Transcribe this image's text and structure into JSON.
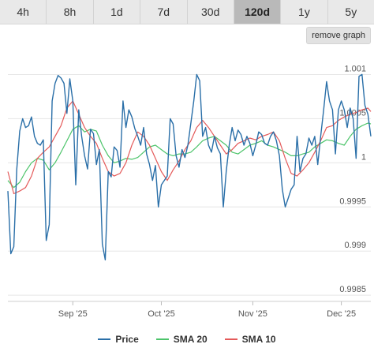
{
  "tabs": [
    {
      "label": "4h",
      "active": false
    },
    {
      "label": "8h",
      "active": false
    },
    {
      "label": "1d",
      "active": false
    },
    {
      "label": "7d",
      "active": false
    },
    {
      "label": "30d",
      "active": false
    },
    {
      "label": "120d",
      "active": true
    },
    {
      "label": "1y",
      "active": false
    },
    {
      "label": "5y",
      "active": false
    }
  ],
  "remove_graph_label": "remove graph",
  "colors": {
    "price": "#2a6fa8",
    "sma20": "#4cc46a",
    "sma10": "#e45a5a",
    "grid": "#e6e6e6"
  },
  "chart_data": {
    "type": "line",
    "title": "",
    "xlabel": "",
    "ylabel": "",
    "ylim": [
      0.99843,
      1.00129
    ],
    "x_range": [
      "2025-08-10",
      "2025-12-11"
    ],
    "x_ticks": [
      {
        "date": "2025-09-01",
        "label": "Sep '25"
      },
      {
        "date": "2025-10-01",
        "label": "Oct '25"
      },
      {
        "date": "2025-11-01",
        "label": "Nov '25"
      },
      {
        "date": "2025-12-01",
        "label": "Dec '25"
      }
    ],
    "y_ticks": [
      {
        "value": 0.9985,
        "label": "0.9985"
      },
      {
        "value": 0.999,
        "label": "0.999"
      },
      {
        "value": 0.9995,
        "label": "0.9995"
      },
      {
        "value": 1.0,
        "label": "1"
      },
      {
        "value": 1.0005,
        "label": "1.0005"
      },
      {
        "value": 1.001,
        "label": "1.001"
      }
    ],
    "grid": true,
    "legend_position": "bottom",
    "series": [
      {
        "name": "Price",
        "points": [
          [
            "2025-08-10",
            0.99968
          ],
          [
            "2025-08-11",
            0.99897
          ],
          [
            "2025-08-12",
            0.99905
          ],
          [
            "2025-08-13",
            0.99992
          ],
          [
            "2025-08-14",
            1.00036
          ],
          [
            "2025-08-15",
            1.0005
          ],
          [
            "2025-08-16",
            1.0004
          ],
          [
            "2025-08-17",
            1.00042
          ],
          [
            "2025-08-18",
            1.00052
          ],
          [
            "2025-08-19",
            1.0003
          ],
          [
            "2025-08-20",
            1.00022
          ],
          [
            "2025-08-21",
            1.0002
          ],
          [
            "2025-08-22",
            1.00026
          ],
          [
            "2025-08-23",
            0.99912
          ],
          [
            "2025-08-24",
            0.9993
          ],
          [
            "2025-08-25",
            1.0007
          ],
          [
            "2025-08-26",
            1.0009
          ],
          [
            "2025-08-27",
            1.00099
          ],
          [
            "2025-08-28",
            1.00096
          ],
          [
            "2025-08-29",
            1.0009
          ],
          [
            "2025-08-30",
            1.00056
          ],
          [
            "2025-08-31",
            1.00095
          ],
          [
            "2025-09-01",
            1.0007
          ],
          [
            "2025-09-02",
            0.99975
          ],
          [
            "2025-09-03",
            1.0006
          ],
          [
            "2025-09-04",
            1.0003
          ],
          [
            "2025-09-05",
            1.00008
          ],
          [
            "2025-09-06",
            0.99993
          ],
          [
            "2025-09-07",
            1.00038
          ],
          [
            "2025-09-08",
            1.00033
          ],
          [
            "2025-09-09",
            0.99998
          ],
          [
            "2025-09-10",
            1.00015
          ],
          [
            "2025-09-11",
            0.99908
          ],
          [
            "2025-09-12",
            0.9989
          ],
          [
            "2025-09-13",
            0.9999
          ],
          [
            "2025-09-14",
            0.99984
          ],
          [
            "2025-09-15",
            1.00018
          ],
          [
            "2025-09-16",
            1.00014
          ],
          [
            "2025-09-17",
            0.99995
          ],
          [
            "2025-09-18",
            1.0007
          ],
          [
            "2025-09-19",
            1.0004
          ],
          [
            "2025-09-20",
            1.0006
          ],
          [
            "2025-09-21",
            1.00052
          ],
          [
            "2025-09-22",
            1.00039
          ],
          [
            "2025-09-23",
            1.0003
          ],
          [
            "2025-09-24",
            1.0002
          ],
          [
            "2025-09-25",
            1.0004
          ],
          [
            "2025-09-26",
            1.0001
          ],
          [
            "2025-09-27",
            0.99998
          ],
          [
            "2025-09-28",
            0.9998
          ],
          [
            "2025-09-29",
            0.99997
          ],
          [
            "2025-09-30",
            0.9995
          ],
          [
            "2025-10-01",
            0.99975
          ],
          [
            "2025-10-02",
            0.9998
          ],
          [
            "2025-10-03",
            0.99985
          ],
          [
            "2025-10-04",
            1.0005
          ],
          [
            "2025-10-05",
            1.00044
          ],
          [
            "2025-10-06",
            1.00008
          ],
          [
            "2025-10-07",
            0.99995
          ],
          [
            "2025-10-08",
            1.00015
          ],
          [
            "2025-10-09",
            1.00006
          ],
          [
            "2025-10-10",
            1.0002
          ],
          [
            "2025-10-11",
            1.00045
          ],
          [
            "2025-10-12",
            1.0007
          ],
          [
            "2025-10-13",
            1.001
          ],
          [
            "2025-10-14",
            1.00093
          ],
          [
            "2025-10-15",
            1.0003
          ],
          [
            "2025-10-16",
            1.0004
          ],
          [
            "2025-10-17",
            1.0002
          ],
          [
            "2025-10-18",
            1.00012
          ],
          [
            "2025-10-19",
            1.0003
          ],
          [
            "2025-10-20",
            1.00017
          ],
          [
            "2025-10-21",
            1.0001
          ],
          [
            "2025-10-22",
            0.9995
          ],
          [
            "2025-10-23",
            0.9999
          ],
          [
            "2025-10-24",
            1.0002
          ],
          [
            "2025-10-25",
            1.0004
          ],
          [
            "2025-10-26",
            1.00025
          ],
          [
            "2025-10-27",
            1.00037
          ],
          [
            "2025-10-28",
            1.00032
          ],
          [
            "2025-10-29",
            1.0002
          ],
          [
            "2025-10-30",
            1.0003
          ],
          [
            "2025-10-31",
            1.00022
          ],
          [
            "2025-11-01",
            1.00008
          ],
          [
            "2025-11-02",
            1.0002
          ],
          [
            "2025-11-03",
            1.00035
          ],
          [
            "2025-11-04",
            1.00032
          ],
          [
            "2025-11-05",
            1.00022
          ],
          [
            "2025-11-06",
            1.0002
          ],
          [
            "2025-11-07",
            1.0003
          ],
          [
            "2025-11-08",
            1.00035
          ],
          [
            "2025-11-09",
            1.00025
          ],
          [
            "2025-11-10",
            1.00008
          ],
          [
            "2025-11-11",
            0.9997
          ],
          [
            "2025-11-12",
            0.9995
          ],
          [
            "2025-11-13",
            0.9996
          ],
          [
            "2025-11-14",
            0.9997
          ],
          [
            "2025-11-15",
            0.99975
          ],
          [
            "2025-11-16",
            1.0003
          ],
          [
            "2025-11-17",
            0.9999
          ],
          [
            "2025-11-18",
            1.00005
          ],
          [
            "2025-11-19",
            1.0001
          ],
          [
            "2025-11-20",
            1.00028
          ],
          [
            "2025-11-21",
            1.0002
          ],
          [
            "2025-11-22",
            1.0003
          ],
          [
            "2025-11-23",
            0.99998
          ],
          [
            "2025-11-24",
            1.0003
          ],
          [
            "2025-11-25",
            1.0006
          ],
          [
            "2025-11-26",
            1.00092
          ],
          [
            "2025-11-27",
            1.0007
          ],
          [
            "2025-11-28",
            1.0006
          ],
          [
            "2025-11-29",
            1.0001
          ],
          [
            "2025-11-30",
            1.0006
          ],
          [
            "2025-12-01",
            1.0007
          ],
          [
            "2025-12-02",
            1.0006
          ],
          [
            "2025-12-03",
            1.0004
          ],
          [
            "2025-12-04",
            1.00062
          ],
          [
            "2025-12-05",
            1.0005
          ],
          [
            "2025-12-06",
            1.00005
          ],
          [
            "2025-12-07",
            1.00098
          ],
          [
            "2025-12-08",
            1.001
          ],
          [
            "2025-12-09",
            1.00065
          ],
          [
            "2025-12-10",
            1.00055
          ],
          [
            "2025-12-11",
            1.0003
          ]
        ]
      },
      {
        "name": "SMA 20",
        "points": [
          [
            "2025-08-10",
            0.9998
          ],
          [
            "2025-08-12",
            0.99972
          ],
          [
            "2025-08-14",
            0.99978
          ],
          [
            "2025-08-16",
            0.9999
          ],
          [
            "2025-08-18",
            1.0
          ],
          [
            "2025-08-20",
            1.00005
          ],
          [
            "2025-08-22",
            1.00003
          ],
          [
            "2025-08-24",
            0.99992
          ],
          [
            "2025-08-26",
            1.0
          ],
          [
            "2025-08-28",
            1.00012
          ],
          [
            "2025-08-30",
            1.00025
          ],
          [
            "2025-09-01",
            1.00038
          ],
          [
            "2025-09-03",
            1.00042
          ],
          [
            "2025-09-05",
            1.00035
          ],
          [
            "2025-09-07",
            1.00038
          ],
          [
            "2025-09-09",
            1.00036
          ],
          [
            "2025-09-11",
            1.0002
          ],
          [
            "2025-09-13",
            1.00008
          ],
          [
            "2025-09-15",
            1.0
          ],
          [
            "2025-09-17",
            1.00002
          ],
          [
            "2025-09-19",
            1.00005
          ],
          [
            "2025-09-21",
            1.00004
          ],
          [
            "2025-09-23",
            1.00006
          ],
          [
            "2025-09-25",
            1.00012
          ],
          [
            "2025-09-27",
            1.00018
          ],
          [
            "2025-09-29",
            1.0002
          ],
          [
            "2025-10-01",
            1.00015
          ],
          [
            "2025-10-03",
            1.0001
          ],
          [
            "2025-10-05",
            1.00008
          ],
          [
            "2025-10-07",
            1.0001
          ],
          [
            "2025-10-09",
            1.0001
          ],
          [
            "2025-10-11",
            1.00012
          ],
          [
            "2025-10-13",
            1.00018
          ],
          [
            "2025-10-15",
            1.00025
          ],
          [
            "2025-10-17",
            1.00028
          ],
          [
            "2025-10-19",
            1.0003
          ],
          [
            "2025-10-21",
            1.00025
          ],
          [
            "2025-10-23",
            1.0002
          ],
          [
            "2025-10-25",
            1.00012
          ],
          [
            "2025-10-27",
            1.0001
          ],
          [
            "2025-10-29",
            1.00015
          ],
          [
            "2025-10-31",
            1.0002
          ],
          [
            "2025-11-02",
            1.00022
          ],
          [
            "2025-11-04",
            1.00025
          ],
          [
            "2025-11-06",
            1.0002
          ],
          [
            "2025-11-08",
            1.00018
          ],
          [
            "2025-11-10",
            1.00015
          ],
          [
            "2025-11-12",
            1.00012
          ],
          [
            "2025-11-14",
            1.00008
          ],
          [
            "2025-11-16",
            1.00008
          ],
          [
            "2025-11-18",
            1.0001
          ],
          [
            "2025-11-20",
            1.00012
          ],
          [
            "2025-11-22",
            1.00018
          ],
          [
            "2025-11-24",
            1.00022
          ],
          [
            "2025-11-26",
            1.00026
          ],
          [
            "2025-11-28",
            1.00025
          ],
          [
            "2025-11-30",
            1.00022
          ],
          [
            "2025-12-02",
            1.0002
          ],
          [
            "2025-12-04",
            1.0003
          ],
          [
            "2025-12-06",
            1.00038
          ],
          [
            "2025-12-08",
            1.00042
          ],
          [
            "2025-12-10",
            1.00045
          ],
          [
            "2025-12-11",
            1.00044
          ]
        ]
      },
      {
        "name": "SMA 10",
        "points": [
          [
            "2025-08-10",
            0.9999
          ],
          [
            "2025-08-12",
            0.99965
          ],
          [
            "2025-08-14",
            0.99968
          ],
          [
            "2025-08-16",
            0.99972
          ],
          [
            "2025-08-18",
            0.99985
          ],
          [
            "2025-08-20",
            1.00005
          ],
          [
            "2025-08-22",
            1.00012
          ],
          [
            "2025-08-24",
            1.00018
          ],
          [
            "2025-08-26",
            1.0003
          ],
          [
            "2025-08-28",
            1.00042
          ],
          [
            "2025-08-30",
            1.00062
          ],
          [
            "2025-09-01",
            1.0007
          ],
          [
            "2025-09-03",
            1.00055
          ],
          [
            "2025-09-05",
            1.0004
          ],
          [
            "2025-09-07",
            1.0003
          ],
          [
            "2025-09-09",
            1.00022
          ],
          [
            "2025-09-11",
            1.00005
          ],
          [
            "2025-09-13",
            0.9999
          ],
          [
            "2025-09-15",
            0.99985
          ],
          [
            "2025-09-17",
            0.99988
          ],
          [
            "2025-09-19",
            1.0
          ],
          [
            "2025-09-21",
            1.0002
          ],
          [
            "2025-09-23",
            1.00035
          ],
          [
            "2025-09-25",
            1.0003
          ],
          [
            "2025-09-27",
            1.0002
          ],
          [
            "2025-09-29",
            1.00005
          ],
          [
            "2025-10-01",
            0.9999
          ],
          [
            "2025-10-03",
            0.9998
          ],
          [
            "2025-10-05",
            0.99992
          ],
          [
            "2025-10-07",
            1.00002
          ],
          [
            "2025-10-09",
            1.00015
          ],
          [
            "2025-10-11",
            1.00025
          ],
          [
            "2025-10-13",
            1.0004
          ],
          [
            "2025-10-15",
            1.00048
          ],
          [
            "2025-10-17",
            1.0004
          ],
          [
            "2025-10-19",
            1.0003
          ],
          [
            "2025-10-21",
            1.0002
          ],
          [
            "2025-10-23",
            1.0001
          ],
          [
            "2025-10-25",
            1.00015
          ],
          [
            "2025-10-27",
            1.00022
          ],
          [
            "2025-10-29",
            1.00025
          ],
          [
            "2025-10-31",
            1.00028
          ],
          [
            "2025-11-02",
            1.00026
          ],
          [
            "2025-11-04",
            1.0003
          ],
          [
            "2025-11-06",
            1.00032
          ],
          [
            "2025-11-08",
            1.00035
          ],
          [
            "2025-11-10",
            1.00025
          ],
          [
            "2025-11-12",
            1.00005
          ],
          [
            "2025-11-14",
            0.99988
          ],
          [
            "2025-11-16",
            0.99985
          ],
          [
            "2025-11-18",
            0.99992
          ],
          [
            "2025-11-20",
            1.0
          ],
          [
            "2025-11-22",
            1.00012
          ],
          [
            "2025-11-24",
            1.00025
          ],
          [
            "2025-11-26",
            1.0004
          ],
          [
            "2025-11-28",
            1.00042
          ],
          [
            "2025-11-30",
            1.00048
          ],
          [
            "2025-12-02",
            1.00052
          ],
          [
            "2025-12-04",
            1.00055
          ],
          [
            "2025-12-06",
            1.00057
          ],
          [
            "2025-12-08",
            1.0006
          ],
          [
            "2025-12-10",
            1.00062
          ],
          [
            "2025-12-11",
            1.00058
          ]
        ]
      }
    ]
  }
}
